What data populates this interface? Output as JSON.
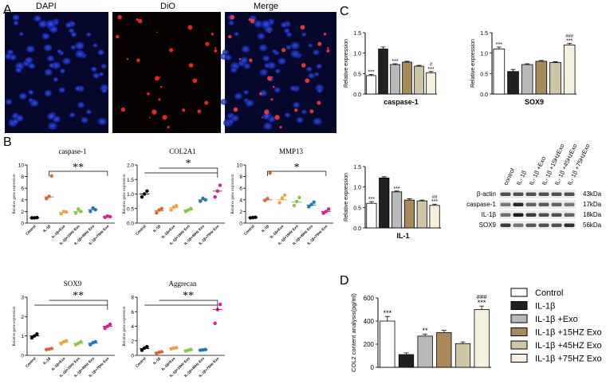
{
  "panel_letters": {
    "a": "A",
    "b": "B",
    "c": "C",
    "d": "D"
  },
  "microscopy": {
    "titles": [
      "DAPI",
      "DiO",
      "Merge"
    ]
  },
  "chart_data": [
    {
      "id": "b_caspase1",
      "type": "scatter",
      "title": "caspase-1",
      "ylabel": "Relative gene expression",
      "ylim": [
        0,
        10
      ],
      "yticks": [
        0,
        2,
        4,
        6,
        8,
        10
      ],
      "categories": [
        "Control",
        "IL-1β",
        "IL-1β+Exo",
        "IL-1β+15Hz Exo",
        "IL-1β+45Hz Exo",
        "IL-1β+75Hz Exo"
      ],
      "colors": [
        "#000000",
        "#d7672f",
        "#f2a23a",
        "#8cc63f",
        "#1f78b4",
        "#e0198c"
      ],
      "points": [
        [
          0.9,
          0.9,
          0.95
        ],
        [
          4.2,
          4.6,
          8.1
        ],
        [
          1.6,
          2.0,
          1.9
        ],
        [
          1.7,
          2.4,
          2.0
        ],
        [
          2.0,
          2.6,
          2.3
        ],
        [
          1.0,
          1.2,
          1.1
        ]
      ],
      "means": [
        0.92,
        4.5,
        1.8,
        2.0,
        2.3,
        1.1
      ],
      "sig": "**",
      "sig_from": 1,
      "sig_to": 5
    },
    {
      "id": "b_col2a1",
      "type": "scatter",
      "title": "COL2A1",
      "ylabel": "Relative gene expression",
      "ylim": [
        0,
        2.0
      ],
      "yticks": [
        0.0,
        0.5,
        1.0,
        1.5,
        2.0
      ],
      "categories": [
        "Control",
        "IL-1β",
        "IL-1β+Exo",
        "IL-1β+15Hz Exo",
        "IL-1β+45Hz Exo",
        "IL-1β+75Hz Exo"
      ],
      "colors": [
        "#000000",
        "#d7672f",
        "#f2a23a",
        "#8cc63f",
        "#1f78b4",
        "#e0198c"
      ],
      "points": [
        [
          0.9,
          1.0,
          1.1
        ],
        [
          0.35,
          0.45,
          0.5
        ],
        [
          0.45,
          0.55,
          0.6
        ],
        [
          0.4,
          0.45,
          0.5
        ],
        [
          0.75,
          0.85,
          0.8
        ],
        [
          0.9,
          1.1,
          1.3
        ]
      ],
      "means": [
        1.0,
        0.43,
        0.53,
        0.45,
        0.8,
        1.1
      ],
      "sig": "*",
      "sig_from": 0,
      "sig_to": 5
    },
    {
      "id": "b_mmp13",
      "type": "scatter",
      "title": "MMP13",
      "ylabel": "Relative gene expression",
      "ylim": [
        0,
        10
      ],
      "yticks": [
        0,
        2,
        4,
        6,
        8,
        10
      ],
      "categories": [
        "Control",
        "IL-1β",
        "IL-1β+Exo",
        "IL-1β+15Hz Exo",
        "IL-1β+45Hz Exo",
        "IL-1β+75Hz Exo"
      ],
      "colors": [
        "#000000",
        "#d7672f",
        "#f2a23a",
        "#8cc63f",
        "#1f78b4",
        "#e0198c"
      ],
      "points": [
        [
          0.9,
          0.95,
          1.0
        ],
        [
          3.9,
          4.2,
          8.6
        ],
        [
          3.5,
          4.3,
          4.8
        ],
        [
          3.0,
          3.7,
          4.4
        ],
        [
          2.8,
          3.2,
          3.6
        ],
        [
          1.7,
          2.0,
          2.4
        ]
      ],
      "means": [
        0.95,
        4.0,
        4.0,
        3.6,
        3.1,
        2.0
      ],
      "sig": "*",
      "sig_from": 1,
      "sig_to": 5
    },
    {
      "id": "b_sox9",
      "type": "scatter",
      "title": "SOX9",
      "ylabel": "Relative gene expression",
      "ylim": [
        0,
        3
      ],
      "yticks": [
        0,
        1,
        2,
        3
      ],
      "categories": [
        "Control",
        "IL-1β",
        "IL-1β+Exo",
        "IL-1β+15Hz Exo",
        "IL-1β+45Hz Exo",
        "IL-1β+75Hz Exo"
      ],
      "colors": [
        "#000000",
        "#d7672f",
        "#f2a23a",
        "#8cc63f",
        "#1f78b4",
        "#e0198c"
      ],
      "points": [
        [
          0.9,
          1.0,
          1.1
        ],
        [
          0.3,
          0.32,
          0.35
        ],
        [
          0.6,
          0.7,
          0.75
        ],
        [
          0.55,
          0.62,
          0.7
        ],
        [
          0.55,
          0.65,
          0.7
        ],
        [
          1.4,
          1.5,
          1.6
        ]
      ],
      "means": [
        1.0,
        0.32,
        0.68,
        0.62,
        0.63,
        1.5
      ],
      "sig": "**",
      "sig_from": 0,
      "sig_to": 5
    },
    {
      "id": "b_aggrecan",
      "type": "scatter",
      "title": "Aggrecan",
      "ylabel": "Relative gene expression",
      "ylim": [
        0,
        8
      ],
      "yticks": [
        0,
        2,
        4,
        6,
        8
      ],
      "categories": [
        "Control",
        "IL-1β",
        "IL-1β+Exo",
        "IL-1β+15Hz Exo",
        "IL-1β+45Hz Exo",
        "IL-1β+75Hz Exo"
      ],
      "colors": [
        "#000000",
        "#d7672f",
        "#f2a23a",
        "#8cc63f",
        "#1f78b4",
        "#e0198c"
      ],
      "points": [
        [
          0.7,
          1.0,
          1.2
        ],
        [
          0.3,
          0.4,
          0.5
        ],
        [
          0.9,
          1.0,
          1.05
        ],
        [
          0.6,
          0.7,
          0.8
        ],
        [
          0.7,
          0.75,
          0.8
        ],
        [
          4.4,
          6.3,
          7.0
        ]
      ],
      "means": [
        0.95,
        0.4,
        1.0,
        0.7,
        0.75,
        6.3
      ],
      "sig": "**",
      "sig_from": 0,
      "sig_to": 5
    },
    {
      "id": "c_caspase1",
      "type": "bar",
      "title": "caspase-1",
      "ylabel": "Relative expression",
      "ylim": [
        0,
        1.5
      ],
      "yticks": [
        0.0,
        0.5,
        1.0,
        1.5
      ],
      "values": [
        0.45,
        1.1,
        0.72,
        0.78,
        0.68,
        0.52
      ],
      "errors": [
        0.03,
        0.05,
        0.02,
        0.02,
        0.02,
        0.03
      ],
      "annotations": [
        "***",
        "",
        "***",
        "",
        "",
        "***"
      ],
      "annotations2": [
        "",
        "",
        "",
        "",
        "",
        "#"
      ]
    },
    {
      "id": "c_sox9",
      "type": "bar",
      "title": "SOX9",
      "ylabel": "Relative expression",
      "ylim": [
        0,
        1.5
      ],
      "yticks": [
        0.0,
        0.5,
        1.0,
        1.5
      ],
      "values": [
        1.1,
        0.55,
        0.72,
        0.8,
        0.77,
        1.2
      ],
      "errors": [
        0.05,
        0.05,
        0.02,
        0.02,
        0.02,
        0.04
      ],
      "annotations": [
        "***",
        "",
        "",
        "",
        "",
        "***"
      ],
      "annotations2": [
        "",
        "",
        "",
        "",
        "",
        "###"
      ]
    },
    {
      "id": "c_il1",
      "type": "bar",
      "title": "IL-1",
      "ylabel": "Relative expression",
      "ylim": [
        0,
        1.5
      ],
      "yticks": [
        0.0,
        0.5,
        1.0,
        1.5
      ],
      "values": [
        0.6,
        1.22,
        0.88,
        0.68,
        0.66,
        0.55
      ],
      "errors": [
        0.04,
        0.03,
        0.02,
        0.03,
        0.02,
        0.03
      ],
      "annotations": [
        "***",
        "",
        "***",
        "",
        "",
        "***"
      ],
      "annotations2": [
        "",
        "",
        "",
        "",
        "",
        "##"
      ]
    },
    {
      "id": "d_col2",
      "type": "bar",
      "title": "",
      "ylabel": "COL2 content analysis(pg/ml)",
      "ylim": [
        0,
        600
      ],
      "yticks": [
        0,
        200,
        400,
        600
      ],
      "values": [
        400,
        110,
        270,
        300,
        205,
        500
      ],
      "errors": [
        40,
        15,
        18,
        20,
        15,
        30
      ],
      "annotations": [
        "***",
        "",
        "**",
        "",
        "",
        "***"
      ],
      "annotations2": [
        "",
        "",
        "",
        "",
        "",
        "###"
      ]
    }
  ],
  "bar_fill_colors": [
    "#ffffff",
    "#231f20",
    "#b8b9bb",
    "#a9895a",
    "#cfc6a8",
    "#f6f1dc"
  ],
  "legend": {
    "items": [
      "Control",
      "IL-1β",
      "IL-1β +Exo",
      "IL-1β +15HZ Exo",
      "IL-1β +45HZ Exo",
      "IL-1β +75HZ Exo"
    ]
  },
  "western_blot": {
    "lanes": [
      "control",
      "IL- 1β",
      "IL- 1β +Exo",
      "IL- 1β +15HzExo",
      "IL- 1β +45HzExo",
      "IL- 1β +75HzExo"
    ],
    "rows": [
      {
        "label": "β-actin",
        "kda": "43kDa",
        "intensity": [
          0.7,
          0.7,
          0.7,
          0.7,
          0.7,
          0.7
        ]
      },
      {
        "label": "caspase-1",
        "kda": "17kDa",
        "intensity": [
          0.5,
          0.9,
          0.6,
          0.65,
          0.6,
          0.5
        ]
      },
      {
        "label": "IL-1β",
        "kda": "18kDa",
        "intensity": [
          0.55,
          0.95,
          0.8,
          0.7,
          0.7,
          0.6
        ]
      },
      {
        "label": "SOX9",
        "kda": "56kDa",
        "intensity": [
          0.8,
          0.5,
          0.65,
          0.7,
          0.7,
          0.85
        ]
      }
    ]
  }
}
